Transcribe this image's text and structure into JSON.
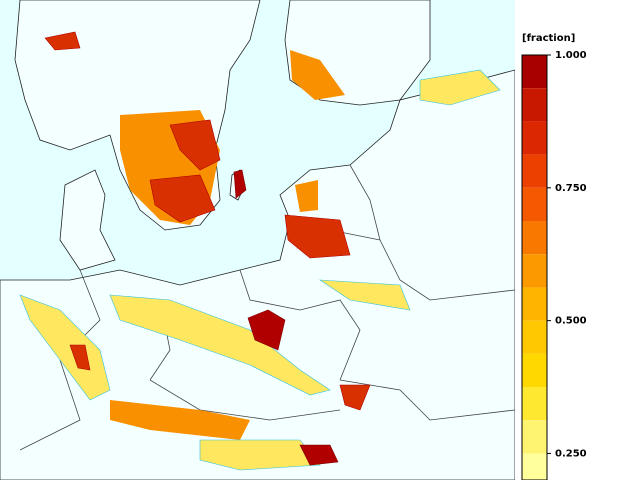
{
  "colorbar": {
    "label": "[fraction]",
    "lim": [
      0.2,
      1
    ],
    "ticks": [
      {
        "value": 1,
        "label": "1.000"
      },
      {
        "value": 0.75,
        "label": "0.750"
      },
      {
        "value": 0.5,
        "label": "0.500"
      },
      {
        "value": 0.25,
        "label": "0.250"
      }
    ],
    "bins": [
      1,
      0.9375,
      0.875,
      0.8125,
      0.75,
      0.6875,
      0.625,
      0.5625,
      0.5,
      0.4375,
      0.375,
      0.3125,
      0.25,
      0.1875
    ],
    "colors": [
      "#a80000",
      "#c81800",
      "#dc2800",
      "#ec4000",
      "#f45800",
      "#f87800",
      "#fc9800",
      "#ffb400",
      "#ffc800",
      "#ffd800",
      "#ffe830",
      "#fff470",
      "#ffff9c"
    ]
  }
}
